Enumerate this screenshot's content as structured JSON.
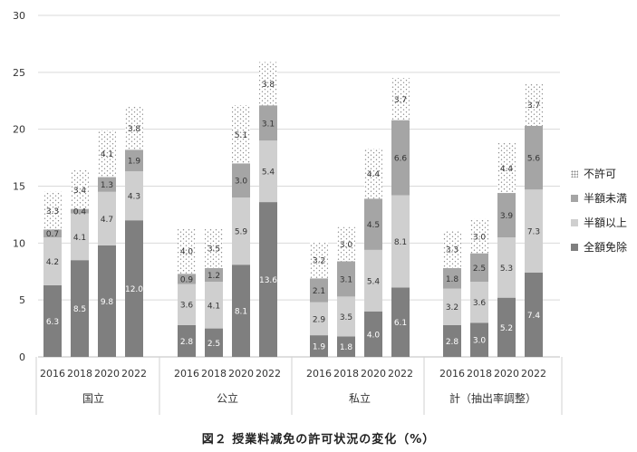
{
  "chart_data": {
    "type": "bar",
    "stacked": true,
    "title": "図２ 授業料減免の許可状況の変化（%）",
    "ylim": [
      0,
      30
    ],
    "yticks": [
      0,
      5,
      10,
      15,
      20,
      25,
      30
    ],
    "grid": true,
    "legend_position": "right",
    "groups": [
      {
        "label": "国立",
        "years": [
          "2016",
          "2018",
          "2020",
          "2022"
        ]
      },
      {
        "label": "公立",
        "years": [
          "2016",
          "2018",
          "2020",
          "2022"
        ]
      },
      {
        "label": "私立",
        "years": [
          "2016",
          "2018",
          "2020",
          "2022"
        ]
      },
      {
        "label": "計（抽出率調整）",
        "years": [
          "2016",
          "2018",
          "2020",
          "2022"
        ]
      }
    ],
    "series": [
      {
        "name": "全額免除",
        "color": "#7f7f7f",
        "values": [
          6.3,
          8.5,
          9.8,
          12.0,
          2.8,
          2.5,
          8.1,
          13.6,
          1.9,
          1.8,
          4.0,
          6.1,
          2.8,
          3.0,
          5.2,
          7.4
        ],
        "labels": [
          "6.3",
          "8.5",
          "9.8",
          "12.0",
          "2.8",
          "2.5",
          "8.1",
          "13.6",
          "1.9",
          "1.8",
          "4.0",
          "6.1",
          "2.8",
          "3.0",
          "5.2",
          "7.4"
        ]
      },
      {
        "name": "半額以上",
        "color": "#cfcfcf",
        "values": [
          4.2,
          4.1,
          4.7,
          4.3,
          3.6,
          4.1,
          5.9,
          5.4,
          2.9,
          3.5,
          5.4,
          8.1,
          3.2,
          3.6,
          5.3,
          7.3
        ],
        "labels": [
          "4.2",
          "4.1",
          "4.7",
          "4.3",
          "3.6",
          "4.1",
          "5.9",
          "5.4",
          "2.9",
          "3.5",
          "5.4",
          "8.1",
          "3.2",
          "3.6",
          "5.3",
          "7.3"
        ]
      },
      {
        "name": "半額未満",
        "color": "#a5a5a5",
        "values": [
          0.7,
          0.4,
          1.3,
          1.9,
          0.9,
          1.2,
          3.0,
          3.1,
          2.1,
          3.1,
          4.5,
          6.6,
          1.8,
          2.5,
          3.9,
          5.6
        ],
        "labels": [
          "0.7",
          "0.4",
          "1.3",
          "1.9",
          "0.9",
          "1.2",
          "3.0",
          "3.1",
          "2.1",
          "3.1",
          "4.5",
          "6.6",
          "1.8",
          "2.5",
          "3.9",
          "5.6"
        ]
      },
      {
        "name": "不許可",
        "color": "#dotted",
        "values": [
          3.3,
          3.4,
          4.1,
          3.8,
          4.0,
          3.5,
          5.1,
          3.8,
          3.2,
          3.0,
          4.4,
          3.7,
          3.3,
          3.0,
          4.4,
          3.7
        ],
        "labels": [
          "3.3",
          "3.4",
          "4.1",
          "3.8",
          "4.0",
          "3.5",
          "5.1",
          "3.8",
          "3.2",
          "3.0",
          "4.4",
          "3.7",
          "3.3",
          "3.0",
          "4.4",
          "3.7"
        ]
      }
    ]
  }
}
